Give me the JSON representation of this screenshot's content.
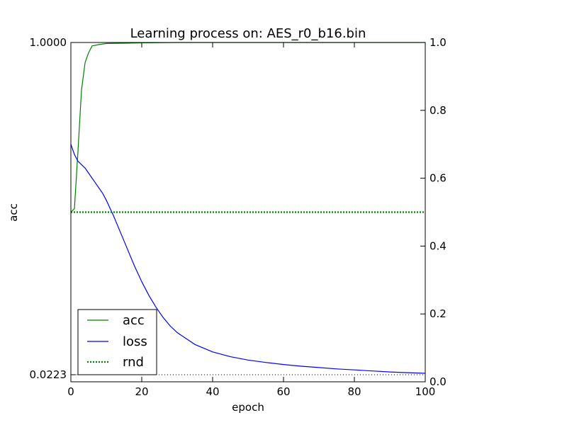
{
  "chart_data": {
    "type": "line",
    "title": "Learning process on: AES_r0_b16.bin",
    "xlabel": "epoch",
    "ylabel": "acc",
    "xlim": [
      0,
      100
    ],
    "xticks": [
      "0",
      "20",
      "40",
      "60",
      "80",
      "100"
    ],
    "y_left_ticks": [
      "0.0223",
      "1.0000"
    ],
    "y_right_lim": [
      0,
      1
    ],
    "y_right_ticks": [
      "0.0",
      "0.2",
      "0.4",
      "0.6",
      "0.8",
      "1.0"
    ],
    "reference_line": {
      "value": 0.0223,
      "style": "dotted",
      "color": "#000000"
    },
    "legend": {
      "position": "lower-left",
      "entries": [
        "acc",
        "loss",
        "rnd"
      ]
    },
    "series": [
      {
        "name": "acc",
        "color": "#008000",
        "style": "solid",
        "x": [
          0,
          1,
          2,
          3,
          4,
          5,
          6,
          8,
          10,
          15,
          20,
          30,
          40,
          50,
          100
        ],
        "y": [
          0.5,
          0.51,
          0.68,
          0.86,
          0.94,
          0.97,
          0.99,
          0.994,
          0.997,
          0.998,
          0.999,
          1.0,
          1.0,
          1.0,
          1.0
        ]
      },
      {
        "name": "loss",
        "color": "#0000ff",
        "style": "solid",
        "x": [
          0,
          1,
          2,
          3,
          4,
          5,
          6,
          7,
          8,
          9,
          10,
          12,
          14,
          16,
          18,
          20,
          22,
          24,
          26,
          28,
          30,
          35,
          40,
          45,
          50,
          55,
          60,
          65,
          70,
          75,
          80,
          85,
          90,
          95,
          100
        ],
        "y": [
          0.7,
          0.67,
          0.65,
          0.64,
          0.63,
          0.615,
          0.6,
          0.585,
          0.57,
          0.555,
          0.535,
          0.49,
          0.44,
          0.39,
          0.34,
          0.295,
          0.255,
          0.22,
          0.19,
          0.165,
          0.145,
          0.11,
          0.088,
          0.074,
          0.064,
          0.057,
          0.051,
          0.046,
          0.042,
          0.038,
          0.035,
          0.032,
          0.029,
          0.027,
          0.025
        ]
      },
      {
        "name": "rnd",
        "color": "#008000",
        "style": "dotted",
        "x": [
          0,
          100
        ],
        "y": [
          0.5,
          0.5
        ]
      }
    ]
  }
}
